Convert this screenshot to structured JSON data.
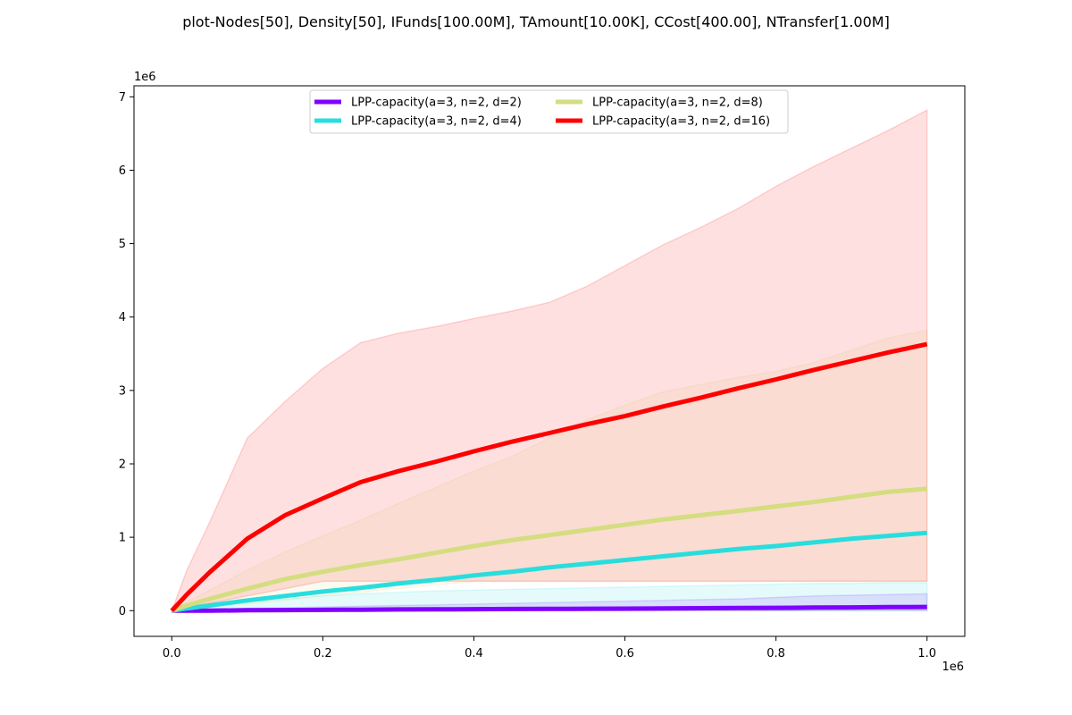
{
  "title": "plot-Nodes[50], Density[50], IFunds[100.00M], TAmount[10.00K], CCost[400.00], NTransfer[1.00M]",
  "x_offset_label": "1e6",
  "y_offset_label": "1e6",
  "chart_data": {
    "type": "line",
    "title": "plot-Nodes[50], Density[50], IFunds[100.00M], TAmount[10.00K], CCost[400.00], NTransfer[1.00M]",
    "xlabel": "",
    "ylabel": "",
    "x_scale_multiplier": "1e6",
    "y_scale_multiplier": "1e6",
    "xlim": [
      -0.05,
      1.05
    ],
    "ylim": [
      -0.35,
      7.15
    ],
    "xticks": [
      "0.0",
      "0.2",
      "0.4",
      "0.6",
      "0.8",
      "1.0"
    ],
    "yticks": [
      "0",
      "1",
      "2",
      "3",
      "4",
      "5",
      "6",
      "7"
    ],
    "grid": false,
    "legend_location": "upper center",
    "x": [
      0.0,
      0.02,
      0.05,
      0.1,
      0.15,
      0.2,
      0.25,
      0.3,
      0.35,
      0.4,
      0.45,
      0.5,
      0.55,
      0.6,
      0.65,
      0.7,
      0.75,
      0.8,
      0.85,
      0.9,
      0.95,
      1.0
    ],
    "series": [
      {
        "name": "LPP-capacity(a=3, n=2, d=2)",
        "color": "#8000ff",
        "values": [
          0.0,
          0.0,
          0.0,
          0.005,
          0.008,
          0.01,
          0.013,
          0.016,
          0.018,
          0.02,
          0.022,
          0.024,
          0.026,
          0.028,
          0.03,
          0.033,
          0.036,
          0.039,
          0.042,
          0.045,
          0.048,
          0.05
        ],
        "band_upper": [
          0.0,
          0.01,
          0.02,
          0.03,
          0.04,
          0.05,
          0.06,
          0.07,
          0.08,
          0.09,
          0.1,
          0.11,
          0.12,
          0.13,
          0.14,
          0.15,
          0.16,
          0.18,
          0.2,
          0.21,
          0.22,
          0.23
        ],
        "band_lower": [
          0.0,
          0.0,
          0.0,
          0.0,
          0.0,
          0.0,
          0.0,
          0.0,
          0.0,
          0.0,
          0.0,
          0.0,
          0.0,
          0.0,
          0.0,
          0.0,
          0.0,
          0.0,
          0.0,
          0.0,
          0.0,
          0.0
        ]
      },
      {
        "name": "LPP-capacity(a=3, n=2, d=4)",
        "color": "#2adddd",
        "values": [
          0.0,
          0.03,
          0.07,
          0.14,
          0.2,
          0.26,
          0.31,
          0.37,
          0.42,
          0.48,
          0.53,
          0.59,
          0.64,
          0.69,
          0.74,
          0.79,
          0.84,
          0.88,
          0.93,
          0.98,
          1.02,
          1.06
        ],
        "band_upper": [
          0.0,
          0.04,
          0.08,
          0.12,
          0.16,
          0.2,
          0.23,
          0.25,
          0.27,
          0.28,
          0.29,
          0.3,
          0.31,
          0.32,
          0.33,
          0.34,
          0.35,
          0.36,
          0.37,
          0.37,
          0.38,
          0.38
        ],
        "band_lower": [
          0.0,
          0.0,
          0.0,
          0.0,
          0.0,
          0.0,
          0.0,
          0.0,
          0.0,
          0.0,
          0.0,
          0.0,
          0.0,
          0.0,
          0.0,
          0.0,
          0.0,
          0.0,
          0.0,
          0.0,
          0.0,
          0.0
        ]
      },
      {
        "name": "LPP-capacity(a=3, n=2, d=8)",
        "color": "#d4dd80",
        "values": [
          0.0,
          0.07,
          0.16,
          0.3,
          0.43,
          0.53,
          0.62,
          0.7,
          0.79,
          0.88,
          0.96,
          1.03,
          1.1,
          1.17,
          1.24,
          1.3,
          1.36,
          1.42,
          1.48,
          1.55,
          1.62,
          1.66
        ],
        "band_upper": [
          0.0,
          0.12,
          0.28,
          0.55,
          0.8,
          1.02,
          1.23,
          1.46,
          1.68,
          1.9,
          2.1,
          2.35,
          2.6,
          2.8,
          2.98,
          3.08,
          3.18,
          3.26,
          3.38,
          3.55,
          3.72,
          3.82
        ],
        "band_lower": [
          0.0,
          0.02,
          0.05,
          0.09,
          0.14,
          0.2,
          0.25,
          0.3,
          0.35,
          0.4,
          0.4,
          0.4,
          0.4,
          0.4,
          0.4,
          0.4,
          0.4,
          0.4,
          0.4,
          0.4,
          0.4,
          0.4
        ]
      },
      {
        "name": "LPP-capacity(a=3, n=2, d=16)",
        "color": "#ff0000",
        "values": [
          0.0,
          0.22,
          0.52,
          0.98,
          1.3,
          1.53,
          1.75,
          1.9,
          2.03,
          2.17,
          2.3,
          2.42,
          2.54,
          2.65,
          2.78,
          2.9,
          3.03,
          3.15,
          3.28,
          3.4,
          3.52,
          3.63
        ],
        "band_upper": [
          0.0,
          0.55,
          1.2,
          2.35,
          2.85,
          3.3,
          3.65,
          3.78,
          3.87,
          3.98,
          4.08,
          4.2,
          4.42,
          4.7,
          4.98,
          5.22,
          5.48,
          5.78,
          6.05,
          6.3,
          6.55,
          6.82
        ],
        "band_lower": [
          0.0,
          0.05,
          0.1,
          0.2,
          0.3,
          0.4,
          0.4,
          0.4,
          0.4,
          0.4,
          0.4,
          0.4,
          0.4,
          0.4,
          0.4,
          0.4,
          0.4,
          0.4,
          0.4,
          0.4,
          0.4,
          0.4
        ]
      }
    ]
  }
}
